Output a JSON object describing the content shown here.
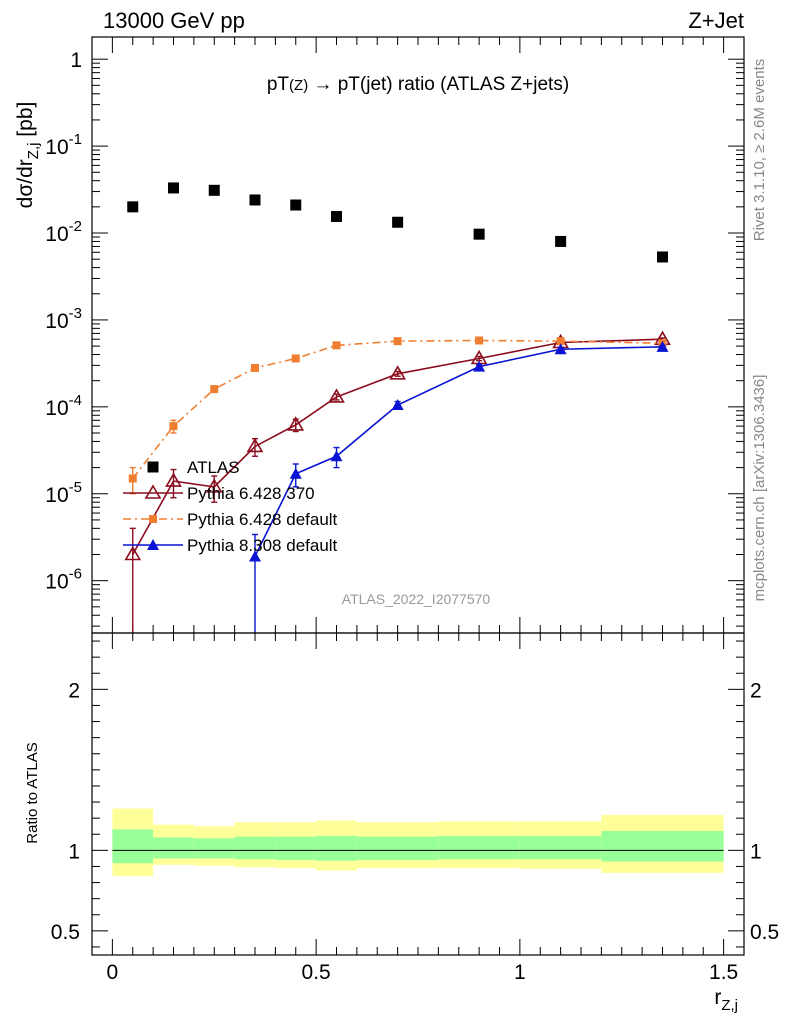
{
  "header": {
    "left": "13000 GeV pp",
    "right": "Z+Jet"
  },
  "side_labels": {
    "rivet": "Rivet 3.1.10, ≥ 2.6M events",
    "mcplots": "mcplots.cern.ch [arXiv:1306.3436]"
  },
  "chart_data": [
    {
      "type": "scatter",
      "panel": "main",
      "title": "pT(Z) → pT(jet) ratio (ATLAS Z+jets)",
      "xlabel": "r_Z,j",
      "ylabel": "dσ/dr_Z,j [pb]",
      "yscale": "log",
      "xlim": [
        -0.05,
        1.55
      ],
      "ylim": [
        2.5e-07,
        1.8
      ],
      "analysis_label": "ATLAS_2022_I2077570",
      "ytick_labels": [
        "10^-6",
        "10^-5",
        "10^-4",
        "10^-3",
        "10^-2",
        "10^-1",
        "1"
      ],
      "legend": "middle-left",
      "series": [
        {
          "name": "ATLAS",
          "marker": "square",
          "color": "#000000",
          "x": [
            0.05,
            0.15,
            0.25,
            0.35,
            0.45,
            0.55,
            0.7,
            0.9,
            1.1,
            1.35
          ],
          "y": [
            0.02,
            0.033,
            0.031,
            0.024,
            0.021,
            0.0155,
            0.0133,
            0.0097,
            0.008,
            0.0053
          ]
        },
        {
          "name": "Pythia 6.428 370",
          "marker": "open-triangle",
          "line": "solid",
          "color": "#8b0d1e",
          "x": [
            0.05,
            0.15,
            0.25,
            0.35,
            0.45,
            0.55,
            0.7,
            0.9,
            1.1,
            1.35
          ],
          "y": [
            2e-06,
            1.4e-05,
            1.2e-05,
            3.5e-05,
            6.2e-05,
            0.00013,
            0.00024,
            0.00036,
            0.00055,
            0.0006
          ],
          "err_low": [
            1.99e-06,
            5e-06,
            4e-06,
            8e-06,
            1e-05,
            1e-05,
            1.5e-05,
            2e-05,
            2e-05,
            2e-05
          ],
          "err_high": [
            2e-06,
            5e-06,
            4e-06,
            8e-06,
            1e-05,
            1e-05,
            1.5e-05,
            2e-05,
            2e-05,
            2e-05
          ]
        },
        {
          "name": "Pythia 6.428 default",
          "marker": "square",
          "line": "dashdot",
          "color": "#f07e30",
          "x": [
            0.05,
            0.15,
            0.25,
            0.35,
            0.45,
            0.55,
            0.7,
            0.9,
            1.1,
            1.35
          ],
          "y": [
            1.5e-05,
            6e-05,
            0.00016,
            0.00028,
            0.00036,
            0.00051,
            0.00057,
            0.00058,
            0.00057,
            0.00054
          ],
          "err_low": [
            5e-06,
            1e-05,
            1.2e-05,
            1.5e-05,
            1.5e-05,
            2e-05,
            2e-05,
            2e-05,
            2e-05,
            2e-05
          ],
          "err_high": [
            5e-06,
            1e-05,
            1.2e-05,
            1.5e-05,
            1.5e-05,
            2e-05,
            2e-05,
            2e-05,
            2e-05,
            2e-05
          ]
        },
        {
          "name": "Pythia 8.308 default",
          "marker": "triangle",
          "line": "solid",
          "color": "#0a14d2",
          "x": [
            0.35,
            0.45,
            0.55,
            0.7,
            0.9,
            1.1,
            1.35
          ],
          "y": [
            1.9e-06,
            1.7e-05,
            2.7e-05,
            0.000105,
            0.00029,
            0.00046,
            0.00049
          ],
          "err_low": [
            1.89e-06,
            5e-06,
            7e-06,
            1e-05,
            1.5e-05,
            2e-05,
            2e-05
          ],
          "err_high": [
            1.5e-06,
            5e-06,
            7e-06,
            1e-05,
            1.5e-05,
            2e-05,
            2e-05
          ]
        }
      ]
    },
    {
      "type": "area",
      "panel": "ratio",
      "xlabel": "r_Z,j",
      "ylabel": "Ratio to ATLAS",
      "ylim": [
        0.35,
        2.35
      ],
      "xlim": [
        -0.05,
        1.55
      ],
      "xtick_labels": [
        "0",
        "0.5",
        "1",
        "1.5"
      ],
      "ytick_labels": [
        "0.5",
        "1",
        "2"
      ],
      "bands": {
        "bins": [
          [
            0.0,
            0.1
          ],
          [
            0.1,
            0.2
          ],
          [
            0.2,
            0.3
          ],
          [
            0.3,
            0.4
          ],
          [
            0.4,
            0.5
          ],
          [
            0.5,
            0.6
          ],
          [
            0.6,
            0.8
          ],
          [
            0.8,
            1.0
          ],
          [
            1.0,
            1.2
          ],
          [
            1.2,
            1.5
          ]
        ],
        "outer_low": [
          0.84,
          0.91,
          0.905,
          0.895,
          0.89,
          0.875,
          0.89,
          0.89,
          0.885,
          0.86
        ],
        "outer_high": [
          1.26,
          1.16,
          1.15,
          1.175,
          1.175,
          1.185,
          1.175,
          1.18,
          1.18,
          1.22
        ],
        "inner_low": [
          0.92,
          0.95,
          0.95,
          0.945,
          0.94,
          0.935,
          0.94,
          0.945,
          0.945,
          0.93
        ],
        "inner_high": [
          1.13,
          1.08,
          1.075,
          1.085,
          1.085,
          1.09,
          1.085,
          1.09,
          1.09,
          1.12
        ],
        "outer_color": "#ffff99",
        "inner_color": "#99ff99"
      },
      "reference_line": 1
    }
  ]
}
